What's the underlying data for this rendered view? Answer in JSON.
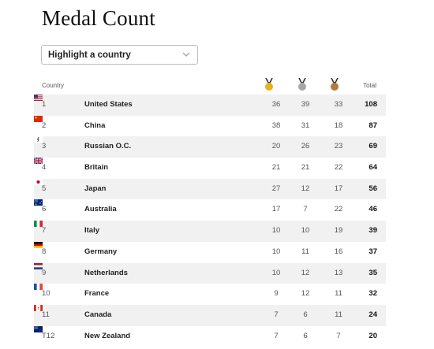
{
  "title": "Medal Count",
  "select": {
    "label": "Highlight a country"
  },
  "header": {
    "country": "Country",
    "total": "Total",
    "medals": [
      "gold-medal-icon",
      "silver-medal-icon",
      "bronze-medal-icon"
    ]
  },
  "colors": {
    "gold": "#e6b31e",
    "silver": "#a7a7a7",
    "bronze": "#b07a3a",
    "shade": "#f1f1f1"
  },
  "rows": [
    {
      "rank": "1",
      "country": "United States",
      "flag": "us-flag-icon",
      "gold": "36",
      "silver": "39",
      "bronze": "33",
      "total": "108"
    },
    {
      "rank": "2",
      "country": "China",
      "flag": "china-flag-icon",
      "gold": "38",
      "silver": "31",
      "bronze": "18",
      "total": "87"
    },
    {
      "rank": "3",
      "country": "Russian O.C.",
      "flag": "roc-flag-icon",
      "gold": "20",
      "silver": "26",
      "bronze": "23",
      "total": "69"
    },
    {
      "rank": "4",
      "country": "Britain",
      "flag": "uk-flag-icon",
      "gold": "21",
      "silver": "21",
      "bronze": "22",
      "total": "64"
    },
    {
      "rank": "5",
      "country": "Japan",
      "flag": "japan-flag-icon",
      "gold": "27",
      "silver": "12",
      "bronze": "17",
      "total": "56"
    },
    {
      "rank": "6",
      "country": "Australia",
      "flag": "australia-flag-icon",
      "gold": "17",
      "silver": "7",
      "bronze": "22",
      "total": "46"
    },
    {
      "rank": "7",
      "country": "Italy",
      "flag": "italy-flag-icon",
      "gold": "10",
      "silver": "10",
      "bronze": "19",
      "total": "39"
    },
    {
      "rank": "8",
      "country": "Germany",
      "flag": "germany-flag-icon",
      "gold": "10",
      "silver": "11",
      "bronze": "16",
      "total": "37"
    },
    {
      "rank": "9",
      "country": "Netherlands",
      "flag": "netherlands-flag-icon",
      "gold": "10",
      "silver": "12",
      "bronze": "13",
      "total": "35"
    },
    {
      "rank": "10",
      "country": "France",
      "flag": "france-flag-icon",
      "gold": "9",
      "silver": "12",
      "bronze": "11",
      "total": "32"
    },
    {
      "rank": "11",
      "country": "Canada",
      "flag": "canada-flag-icon",
      "gold": "7",
      "silver": "6",
      "bronze": "11",
      "total": "24"
    },
    {
      "rank": "T12",
      "country": "New Zealand",
      "flag": "new-zealand-flag-icon",
      "gold": "7",
      "silver": "6",
      "bronze": "7",
      "total": "20"
    }
  ]
}
